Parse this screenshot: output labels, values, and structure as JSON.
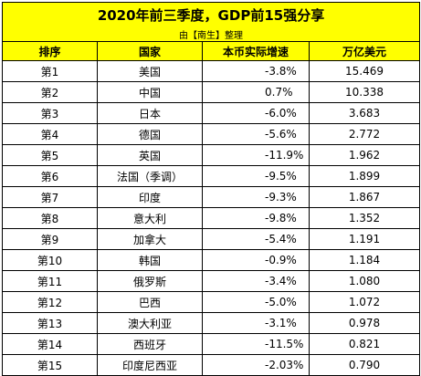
{
  "title": "2020年前三季度，GDP前15强分享",
  "subtitle": "由【南生】整理",
  "columns": [
    "排序",
    "国家",
    "本币实际增速",
    "万亿美元"
  ],
  "rows": [
    {
      "rank": "第1",
      "country": "美国",
      "growth": "-3.8%",
      "gdp": "15.469"
    },
    {
      "rank": "第2",
      "country": "中国",
      "growth": "0.7%",
      "gdp": "10.338"
    },
    {
      "rank": "第3",
      "country": "日本",
      "growth": "-6.0%",
      "gdp": "3.683"
    },
    {
      "rank": "第4",
      "country": "德国",
      "growth": "-5.6%",
      "gdp": "2.772"
    },
    {
      "rank": "第5",
      "country": "英国",
      "growth": "-11.9%",
      "gdp": "1.962"
    },
    {
      "rank": "第6",
      "country": "法国（季调）",
      "growth": "-9.5%",
      "gdp": "1.899"
    },
    {
      "rank": "第7",
      "country": "印度",
      "growth": "-9.3%",
      "gdp": "1.867"
    },
    {
      "rank": "第8",
      "country": "意大利",
      "growth": "-9.8%",
      "gdp": "1.352"
    },
    {
      "rank": "第9",
      "country": "加拿大",
      "growth": "-5.4%",
      "gdp": "1.191"
    },
    {
      "rank": "第10",
      "country": "韩国",
      "growth": "-0.9%",
      "gdp": "1.184"
    },
    {
      "rank": "第11",
      "country": "俄罗斯",
      "growth": "-3.4%",
      "gdp": "1.080"
    },
    {
      "rank": "第12",
      "country": "巴西",
      "growth": "-5.0%",
      "gdp": "1.072"
    },
    {
      "rank": "第13",
      "country": "澳大利亚",
      "growth": "-3.1%",
      "gdp": "0.978"
    },
    {
      "rank": "第14",
      "country": "西班牙",
      "growth": "-11.5%",
      "gdp": "0.821"
    },
    {
      "rank": "第15",
      "country": "印度尼西亚",
      "growth": "-2.03%",
      "gdp": "0.790"
    }
  ],
  "colors": {
    "header_background": "#ffff00",
    "border": "#000000"
  }
}
